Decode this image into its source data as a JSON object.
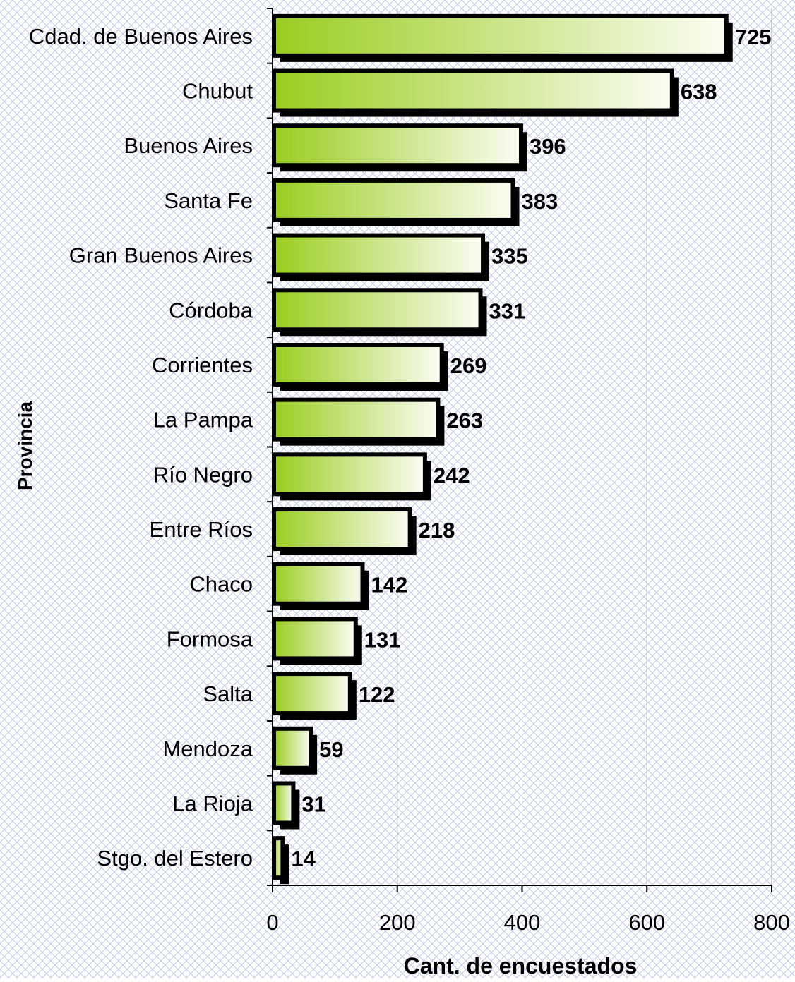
{
  "colors": {
    "background": "#ffffff",
    "pattern": "#c5cde8",
    "bar_gradient_start": "#9acd1f",
    "bar_gradient_end": "#fbfdf3",
    "bar_border": "#000000",
    "gridline": "#a0a0a0",
    "axis": "#000000"
  },
  "chart_data": {
    "type": "bar",
    "orientation": "horizontal",
    "xlabel": "Cant. de encuestados",
    "ylabel": "Provincia",
    "xlim": [
      0,
      800
    ],
    "xticks": [
      0,
      200,
      400,
      600,
      800
    ],
    "grid": "vertical",
    "legend": "none",
    "categories": [
      "Cdad. de Buenos Aires",
      "Chubut",
      "Buenos Aires",
      "Santa Fe",
      "Gran Buenos Aires",
      "Córdoba",
      "Corrientes",
      "La Pampa",
      "Río Negro",
      "Entre Ríos",
      "Chaco",
      "Formosa",
      "Salta",
      "Mendoza",
      "La Rioja",
      "Stgo. del Estero"
    ],
    "values": [
      725,
      638,
      396,
      383,
      335,
      331,
      269,
      263,
      242,
      218,
      142,
      131,
      122,
      59,
      31,
      14
    ]
  }
}
